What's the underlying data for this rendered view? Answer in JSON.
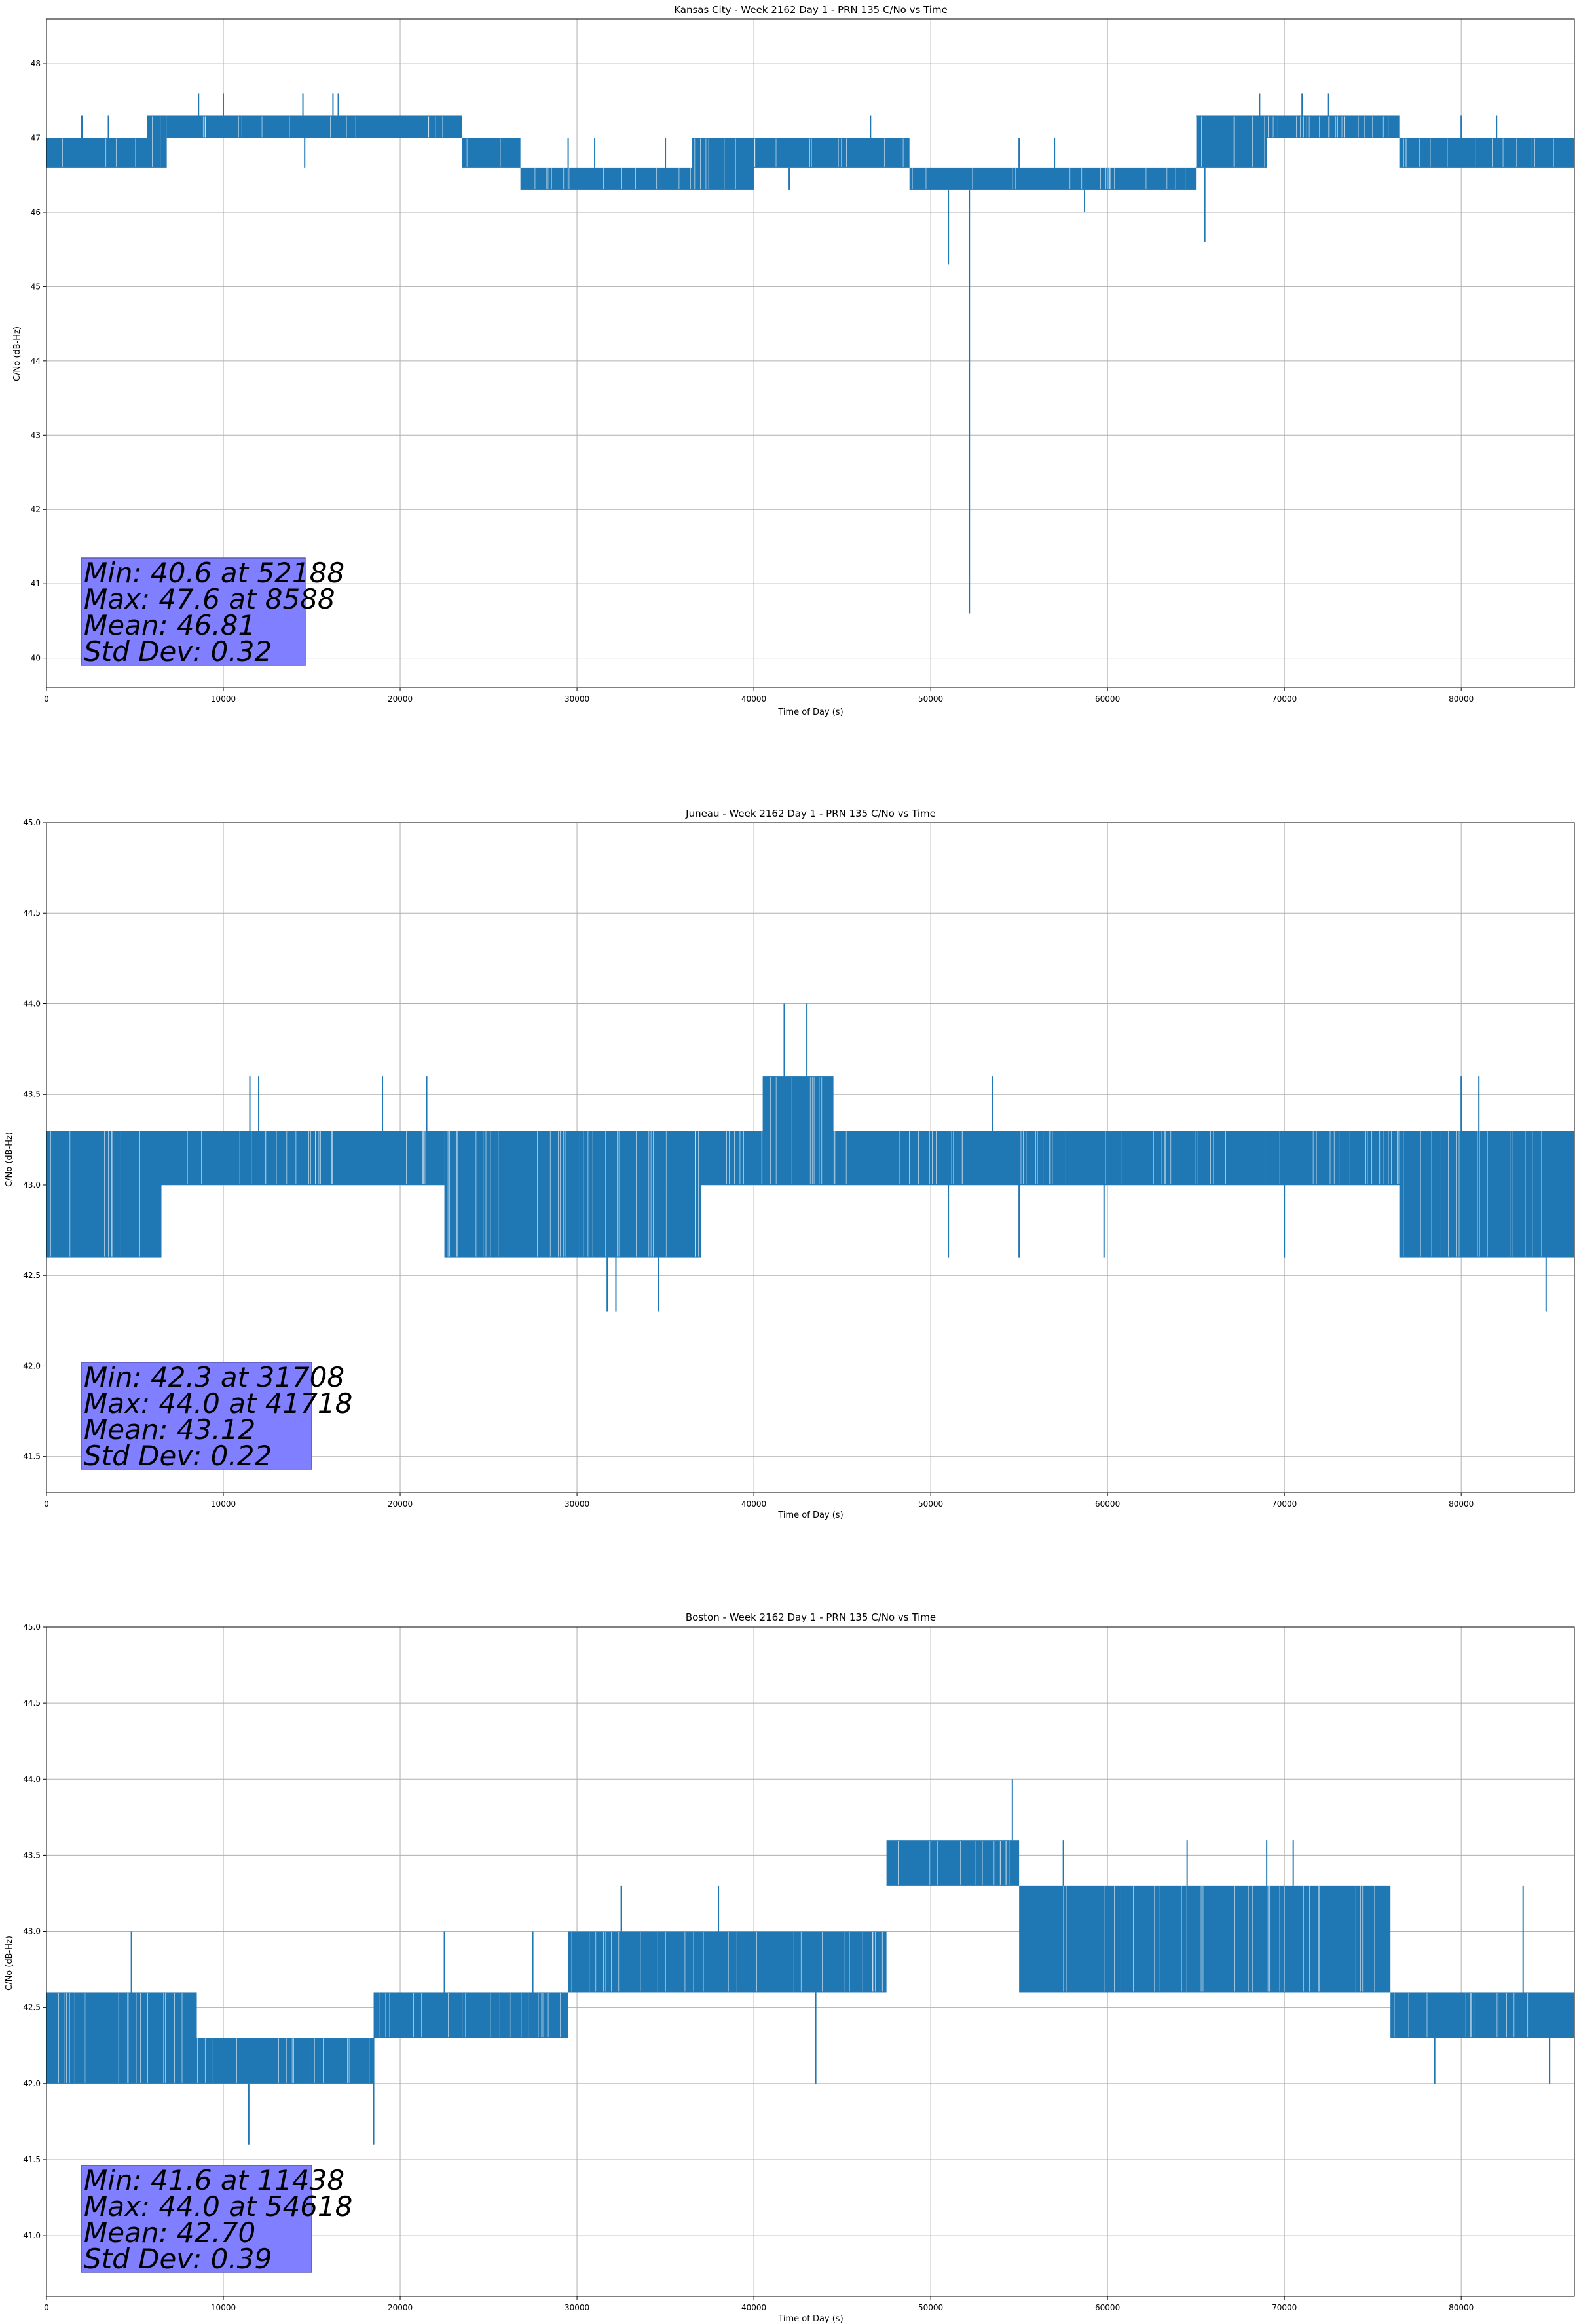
{
  "chart_data": [
    {
      "type": "line",
      "title": "Kansas City - Week 2162 Day 1 - PRN 135 C/No vs Time",
      "xlabel": "Time of Day (s)",
      "ylabel": "C/No (dB-Hz)",
      "xlim": [
        0,
        86400
      ],
      "ylim": [
        39.6,
        48.6
      ],
      "xticks": [
        0,
        10000,
        20000,
        30000,
        40000,
        50000,
        60000,
        70000,
        80000
      ],
      "yticks": [
        40,
        41,
        42,
        43,
        44,
        45,
        46,
        47,
        48
      ],
      "xtick_labels": [
        "0",
        "10000",
        "20000",
        "30000",
        "40000",
        "50000",
        "60000",
        "70000",
        "80000"
      ],
      "ytick_labels": [
        "40",
        "41",
        "42",
        "43",
        "44",
        "45",
        "46",
        "47",
        "48"
      ],
      "grid": true,
      "color": "#1f77b4",
      "series": [
        {
          "bands": [
            {
              "x": [
                0,
                5700
              ],
              "y": [
                46.6,
                47.0
              ]
            },
            {
              "x": [
                5700,
                6800
              ],
              "y": [
                46.6,
                47.3
              ]
            },
            {
              "x": [
                6800,
                23500
              ],
              "y": [
                47.0,
                47.3
              ]
            },
            {
              "x": [
                23500,
                26800
              ],
              "y": [
                46.6,
                47.0
              ]
            },
            {
              "x": [
                26800,
                36500
              ],
              "y": [
                46.3,
                46.6
              ]
            },
            {
              "x": [
                36500,
                40000
              ],
              "y": [
                46.3,
                47.0
              ]
            },
            {
              "x": [
                40000,
                48800
              ],
              "y": [
                46.6,
                47.0
              ]
            },
            {
              "x": [
                48800,
                50000
              ],
              "y": [
                46.3,
                46.6
              ]
            },
            {
              "x": [
                50000,
                65000
              ],
              "y": [
                46.3,
                46.6
              ]
            },
            {
              "x": [
                65000,
                69000
              ],
              "y": [
                46.6,
                47.3
              ]
            },
            {
              "x": [
                69000,
                76500
              ],
              "y": [
                47.0,
                47.3
              ]
            },
            {
              "x": [
                76500,
                86400
              ],
              "y": [
                46.6,
                47.0
              ]
            }
          ],
          "spikes": [
            {
              "x": 2000,
              "y": 47.3
            },
            {
              "x": 3500,
              "y": 47.3
            },
            {
              "x": 8600,
              "y": 47.6
            },
            {
              "x": 10000,
              "y": 47.6
            },
            {
              "x": 14500,
              "y": 47.6
            },
            {
              "x": 14600,
              "y": 46.6
            },
            {
              "x": 16200,
              "y": 47.6
            },
            {
              "x": 16500,
              "y": 47.6
            },
            {
              "x": 29500,
              "y": 47.0
            },
            {
              "x": 31000,
              "y": 47.0
            },
            {
              "x": 35000,
              "y": 47.0
            },
            {
              "x": 42000,
              "y": 46.3
            },
            {
              "x": 46600,
              "y": 47.3
            },
            {
              "x": 51000,
              "y": 45.3
            },
            {
              "x": 52188,
              "y": 40.6
            },
            {
              "x": 55000,
              "y": 47.0
            },
            {
              "x": 57000,
              "y": 47.0
            },
            {
              "x": 58700,
              "y": 46.0
            },
            {
              "x": 65500,
              "y": 45.6
            },
            {
              "x": 68600,
              "y": 47.6
            },
            {
              "x": 71000,
              "y": 47.6
            },
            {
              "x": 72500,
              "y": 47.6
            },
            {
              "x": 80000,
              "y": 47.3
            },
            {
              "x": 82000,
              "y": 47.3
            }
          ]
        }
      ],
      "stats": [
        "Min: 40.6 at 52188",
        "Max: 47.6 at 8588",
        "Mean: 46.81",
        "Std Dev: 0.32"
      ]
    },
    {
      "type": "line",
      "title": "Juneau - Week 2162 Day 1 - PRN 135 C/No vs Time",
      "xlabel": "Time of Day (s)",
      "ylabel": "C/No (dB-Hz)",
      "xlim": [
        0,
        86400
      ],
      "ylim": [
        41.3,
        45.0
      ],
      "xticks": [
        0,
        10000,
        20000,
        30000,
        40000,
        50000,
        60000,
        70000,
        80000
      ],
      "yticks": [
        41.5,
        42.0,
        42.5,
        43.0,
        43.5,
        44.0,
        44.5,
        45.0
      ],
      "xtick_labels": [
        "0",
        "10000",
        "20000",
        "30000",
        "40000",
        "50000",
        "60000",
        "70000",
        "80000"
      ],
      "ytick_labels": [
        "41.5",
        "42.0",
        "42.5",
        "43.0",
        "43.5",
        "44.0",
        "44.5",
        "45.0"
      ],
      "grid": true,
      "color": "#1f77b4",
      "series": [
        {
          "bands": [
            {
              "x": [
                0,
                6500
              ],
              "y": [
                42.6,
                43.3
              ]
            },
            {
              "x": [
                6500,
                22500
              ],
              "y": [
                43.0,
                43.3
              ]
            },
            {
              "x": [
                22500,
                35000
              ],
              "y": [
                42.6,
                43.3
              ]
            },
            {
              "x": [
                35000,
                37000
              ],
              "y": [
                42.6,
                43.3
              ]
            },
            {
              "x": [
                37000,
                40500
              ],
              "y": [
                43.0,
                43.3
              ]
            },
            {
              "x": [
                40500,
                44500
              ],
              "y": [
                43.0,
                43.6
              ]
            },
            {
              "x": [
                44500,
                86400
              ],
              "y": [
                43.0,
                43.3
              ]
            },
            {
              "x": [
                76500,
                86400
              ],
              "y": [
                42.6,
                43.3
              ]
            }
          ],
          "spikes": [
            {
              "x": 11500,
              "y": 43.6
            },
            {
              "x": 12000,
              "y": 43.6
            },
            {
              "x": 19000,
              "y": 43.6
            },
            {
              "x": 21500,
              "y": 43.6
            },
            {
              "x": 31708,
              "y": 42.3
            },
            {
              "x": 32200,
              "y": 42.3
            },
            {
              "x": 34600,
              "y": 42.3
            },
            {
              "x": 41718,
              "y": 44.0
            },
            {
              "x": 43000,
              "y": 44.0
            },
            {
              "x": 51000,
              "y": 42.6
            },
            {
              "x": 53500,
              "y": 43.6
            },
            {
              "x": 55000,
              "y": 42.6
            },
            {
              "x": 59800,
              "y": 42.6
            },
            {
              "x": 70000,
              "y": 42.6
            },
            {
              "x": 78000,
              "y": 42.6
            },
            {
              "x": 84800,
              "y": 42.3
            },
            {
              "x": 80000,
              "y": 43.6
            },
            {
              "x": 81000,
              "y": 43.6
            }
          ]
        }
      ],
      "stats": [
        "Min: 42.3 at 31708",
        "Max: 44.0 at 41718",
        "Mean: 43.12",
        "Std Dev: 0.22"
      ]
    },
    {
      "type": "line",
      "title": "Boston - Week 2162 Day 1 - PRN 135 C/No vs Time",
      "xlabel": "Time of Day (s)",
      "ylabel": "C/No (dB-Hz)",
      "xlim": [
        0,
        86400
      ],
      "ylim": [
        40.6,
        45.0
      ],
      "xticks": [
        0,
        10000,
        20000,
        30000,
        40000,
        50000,
        60000,
        70000,
        80000
      ],
      "yticks": [
        41.0,
        41.5,
        42.0,
        42.5,
        43.0,
        43.5,
        44.0,
        44.5,
        45.0
      ],
      "xtick_labels": [
        "0",
        "10000",
        "20000",
        "30000",
        "40000",
        "50000",
        "60000",
        "70000",
        "80000"
      ],
      "ytick_labels": [
        "41.0",
        "41.5",
        "42.0",
        "42.5",
        "43.0",
        "43.5",
        "44.0",
        "44.5",
        "45.0"
      ],
      "grid": true,
      "color": "#1f77b4",
      "series": [
        {
          "bands": [
            {
              "x": [
                0,
                8500
              ],
              "y": [
                42.0,
                42.6
              ]
            },
            {
              "x": [
                8500,
                18500
              ],
              "y": [
                42.0,
                42.3
              ]
            },
            {
              "x": [
                18500,
                29500
              ],
              "y": [
                42.3,
                42.6
              ]
            },
            {
              "x": [
                29500,
                47500
              ],
              "y": [
                42.6,
                43.0
              ]
            },
            {
              "x": [
                47500,
                55000
              ],
              "y": [
                43.3,
                43.6
              ]
            },
            {
              "x": [
                55000,
                76000
              ],
              "y": [
                42.6,
                43.3
              ]
            },
            {
              "x": [
                76000,
                86400
              ],
              "y": [
                42.3,
                42.6
              ]
            }
          ],
          "spikes": [
            {
              "x": 4800,
              "y": 43.0
            },
            {
              "x": 11438,
              "y": 41.6
            },
            {
              "x": 18500,
              "y": 41.6
            },
            {
              "x": 22500,
              "y": 43.0
            },
            {
              "x": 27500,
              "y": 43.0
            },
            {
              "x": 32500,
              "y": 43.3
            },
            {
              "x": 38000,
              "y": 43.3
            },
            {
              "x": 43500,
              "y": 42.0
            },
            {
              "x": 54618,
              "y": 44.0
            },
            {
              "x": 57500,
              "y": 43.6
            },
            {
              "x": 64500,
              "y": 43.6
            },
            {
              "x": 69000,
              "y": 43.6
            },
            {
              "x": 70500,
              "y": 43.6
            },
            {
              "x": 78500,
              "y": 42.0
            },
            {
              "x": 83500,
              "y": 43.3
            },
            {
              "x": 85000,
              "y": 42.0
            }
          ]
        }
      ],
      "stats": [
        "Min: 41.6 at 11438",
        "Max: 44.0 at 54618",
        "Mean: 42.70",
        "Std Dev: 0.39"
      ]
    }
  ]
}
